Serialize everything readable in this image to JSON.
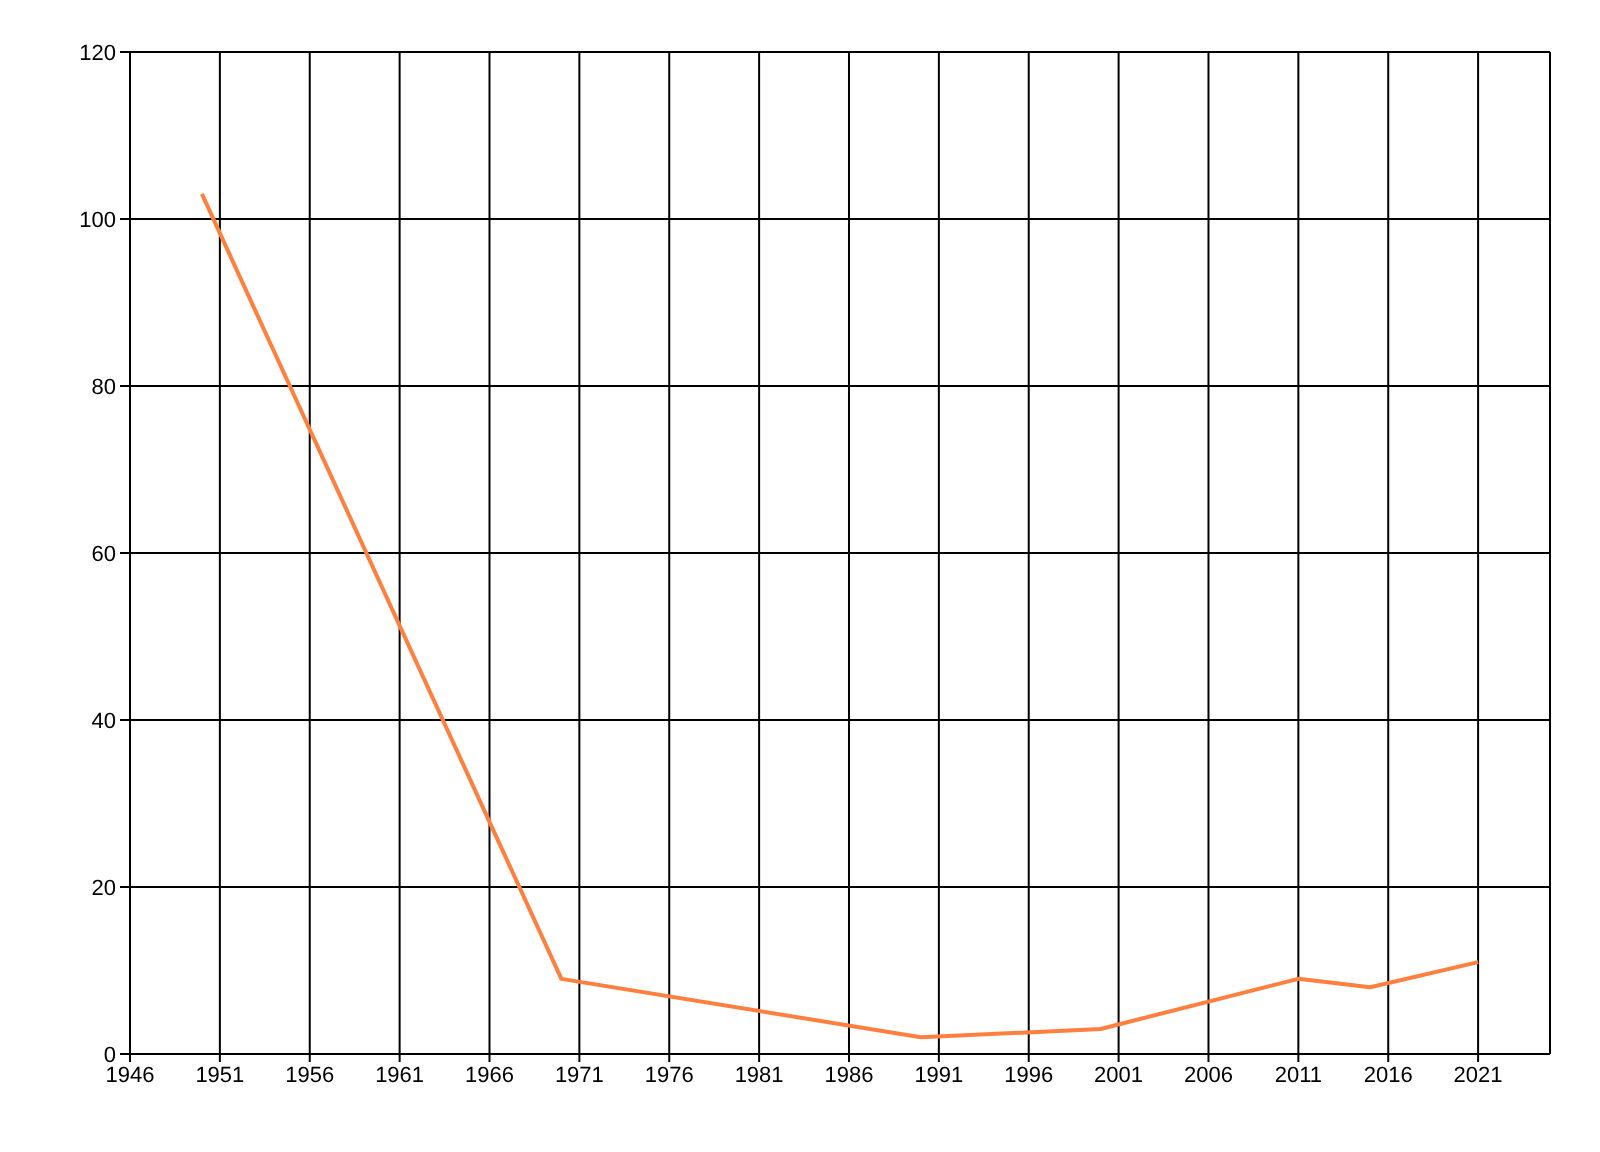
{
  "chart_data": {
    "type": "line",
    "x": [
      1950,
      1970,
      1990,
      2000,
      2011,
      2015,
      2021
    ],
    "series": [
      {
        "color": "#ff7f3f",
        "values": [
          103,
          9,
          2,
          3,
          9,
          8,
          11
        ]
      }
    ],
    "xlim": [
      1946,
      2025
    ],
    "xticks": [
      1946,
      1951,
      1956,
      1961,
      1966,
      1971,
      1976,
      1981,
      1986,
      1991,
      1996,
      2001,
      2006,
      2011,
      2016,
      2021
    ],
    "ylim": [
      0,
      120
    ],
    "yticks": [
      0,
      20,
      40,
      60,
      80,
      100,
      120
    ],
    "grid": true,
    "legend": false,
    "marker": "none",
    "line_style": "solid"
  }
}
